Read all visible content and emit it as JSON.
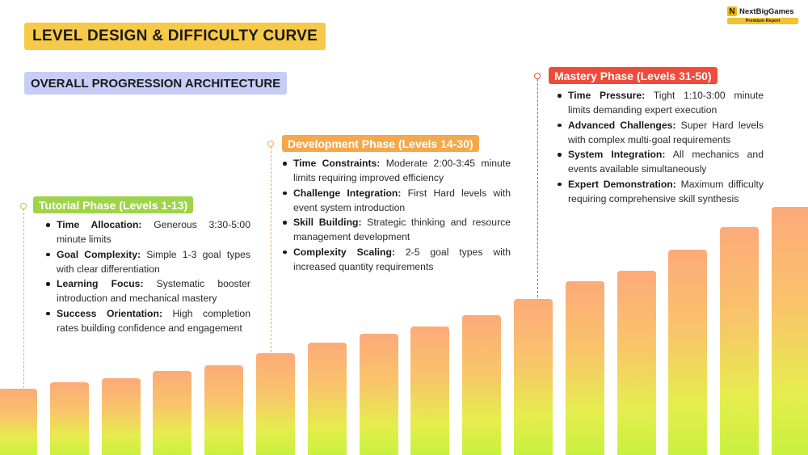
{
  "title": "LEVEL DESIGN & DIFFICULTY CURVE",
  "subtitle": "OVERALL PROGRESSION ARCHITECTURE",
  "logo": {
    "name": "NextBigGames",
    "badge": "Premium Report"
  },
  "phases": [
    {
      "label": "Tutorial Phase (Levels 1-13)",
      "color": "#9ed448",
      "items": [
        {
          "term": "Time Allocation:",
          "text": " Generous 3:30-5:00 minute limits"
        },
        {
          "term": "Goal Complexity:",
          "text": " Simple 1-3 goal types with clear differentiation"
        },
        {
          "term": "Learning Focus:",
          "text": " Systematic booster introduction and mechanical mastery"
        },
        {
          "term": "Success Orientation:",
          "text": " High completion rates building confidence and engagement"
        }
      ]
    },
    {
      "label": "Development Phase (Levels 14-30)",
      "color": "#f5a84a",
      "items": [
        {
          "term": "Time Constraints:",
          "text": " Moderate 2:00-3:45 minute limits requiring improved efficiency"
        },
        {
          "term": "Challenge Integration:",
          "text": " First Hard levels with event system introduction"
        },
        {
          "term": "Skill Building:",
          "text": " Strategic thinking and resource management development"
        },
        {
          "term": "Complexity Scaling:",
          "text": " 2-5 goal types with increased quantity requirements"
        }
      ]
    },
    {
      "label": "Mastery Phase (Levels 31-50)",
      "color": "#ef4a3a",
      "items": [
        {
          "term": "Time Pressure:",
          "text": " Tight 1:10-3:00 minute limits demanding expert execution"
        },
        {
          "term": "Advanced Challenges:",
          "text": " Super Hard levels with complex multi-goal requirements"
        },
        {
          "term": "System Integration:",
          "text": " All mechanics and events available simultaneously"
        },
        {
          "term": "Expert Demonstration:",
          "text": " Maximum difficulty requiring comprehensive skill synthesis"
        }
      ]
    }
  ],
  "difficulty_bars": [
    82,
    90,
    95,
    104,
    111,
    126,
    139,
    150,
    159,
    173,
    193,
    215,
    228,
    254,
    282,
    307
  ],
  "difficulty_bars_max": 307
}
